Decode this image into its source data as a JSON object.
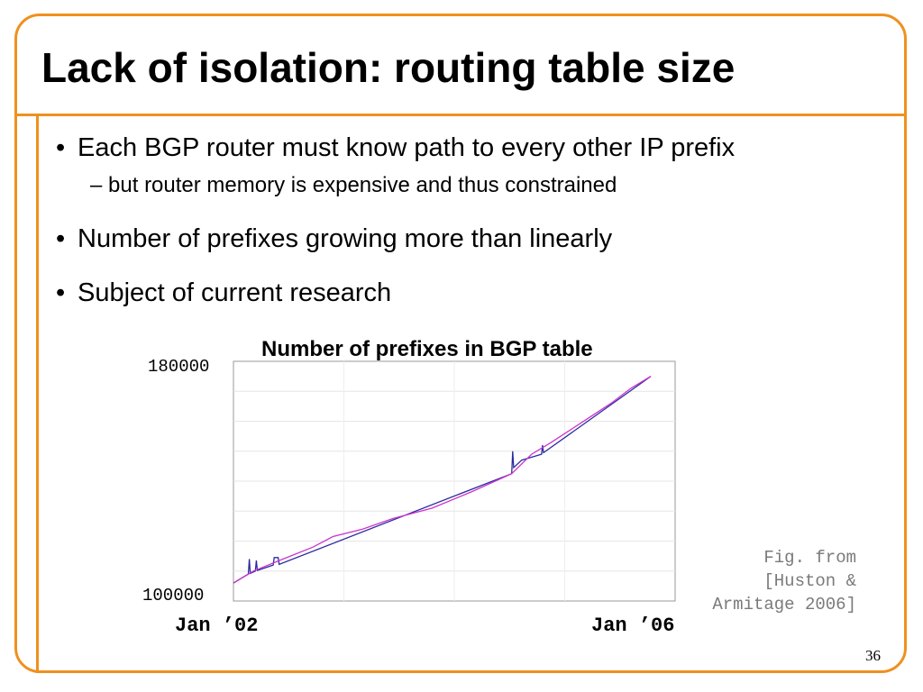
{
  "slide": {
    "title": "Lack of isolation: routing table size",
    "bullets": [
      {
        "marker": "•",
        "text": "Each BGP router must know path to every other IP prefix"
      },
      {
        "marker": "–",
        "text": "but router memory is expensive and thus constrained"
      },
      {
        "marker": "•",
        "text": "Number of prefixes growing more than linearly"
      },
      {
        "marker": "•",
        "text": "Subject of current research"
      }
    ],
    "caption_lines": [
      "Fig. from",
      "[Huston &",
      "Armitage 2006]"
    ],
    "page_number": "36",
    "accent_color": "#f0901e"
  },
  "chart_data": {
    "type": "line",
    "title": "Number of prefixes in BGP table",
    "ytick_labels": [
      "180000",
      "100000"
    ],
    "xtick_labels": [
      "Jan ’02",
      "Jan ’06"
    ],
    "ylim": [
      100000,
      180000
    ],
    "xlim": [
      2002.0,
      2006.0
    ],
    "grid": true,
    "series": [
      {
        "color": "#cc33cc",
        "x": [
          2002.0,
          2002.2,
          2002.5,
          2002.8,
          2003.0,
          2003.3,
          2003.6,
          2004.0,
          2004.4,
          2004.8,
          2005.0,
          2005.2,
          2005.5,
          2005.8,
          2006.0,
          2006.2
        ],
        "y": [
          106000,
          110000,
          114000,
          118000,
          121500,
          124000,
          127500,
          131000,
          136500,
          142500,
          149000,
          153000,
          159500,
          166000,
          171000,
          175000
        ]
      },
      {
        "color": "#2a2aa0",
        "x": [
          2002.0,
          2002.15,
          2002.16,
          2002.17,
          2002.22,
          2002.23,
          2002.24,
          2002.4,
          2002.41,
          2002.45,
          2002.46,
          2004.8,
          2004.81,
          2004.82,
          2004.9,
          2005.1,
          2005.11,
          2005.12,
          2006.2
        ],
        "y": [
          106000,
          109000,
          114000,
          109200,
          110000,
          113500,
          110200,
          112000,
          114500,
          114500,
          112200,
          142500,
          150000,
          144500,
          147000,
          149000,
          152000,
          149500,
          175000
        ]
      }
    ]
  }
}
